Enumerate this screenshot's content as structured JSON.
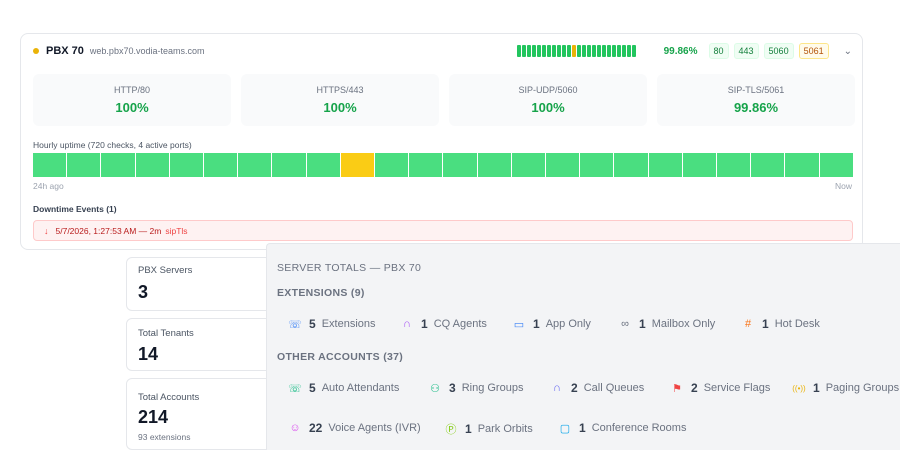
{
  "monitor": {
    "name": "PBX 70",
    "url": "web.pbx70.vodia-teams.com",
    "status_color": "#eab308",
    "overall_uptime": "99.86%",
    "mini_timeline": [
      "up",
      "up",
      "up",
      "up",
      "up",
      "up",
      "up",
      "up",
      "up",
      "up",
      "up",
      "warn",
      "up",
      "up",
      "up",
      "up",
      "up",
      "up",
      "up",
      "up",
      "up",
      "up",
      "up",
      "up"
    ],
    "port_chips": [
      {
        "label": "80",
        "status": "up"
      },
      {
        "label": "443",
        "status": "up"
      },
      {
        "label": "5060",
        "status": "up"
      },
      {
        "label": "5061",
        "status": "warn"
      }
    ],
    "ports": [
      {
        "label": "HTTP/80",
        "uptime": "100%"
      },
      {
        "label": "HTTPS/443",
        "uptime": "100%"
      },
      {
        "label": "SIP-UDP/5060",
        "uptime": "100%"
      },
      {
        "label": "SIP-TLS/5061",
        "uptime": "99.86%"
      }
    ],
    "hourly_title": "Hourly uptime (720 checks, 4 active ports)",
    "hourly": [
      "up",
      "up",
      "up",
      "up",
      "up",
      "up",
      "up",
      "up",
      "up",
      "warn",
      "up",
      "up",
      "up",
      "up",
      "up",
      "up",
      "up",
      "up",
      "up",
      "up",
      "up",
      "up",
      "up",
      "up"
    ],
    "axis_start": "24h ago",
    "axis_end": "Now",
    "downtime_title": "Downtime Events (1)",
    "events": [
      {
        "time": "5/7/2026, 1:27:53 AM — 2m",
        "port": "sipTls"
      }
    ]
  },
  "stats": [
    {
      "label": "PBX Servers",
      "value": "3",
      "sub": ""
    },
    {
      "label": "Total Tenants",
      "value": "14",
      "sub": ""
    },
    {
      "label": "Total Accounts",
      "value": "214",
      "sub": "93 extensions"
    }
  ],
  "server_totals": {
    "title": "SERVER TOTALS — PBX 70",
    "extensions_title": "EXTENSIONS (9)",
    "extensions": [
      {
        "icon": "phone-icon",
        "glyph": "☏",
        "color": "#3b82f6",
        "count": "5",
        "label": "Extensions"
      },
      {
        "icon": "headset-icon",
        "glyph": "∩",
        "color": "#a855f7",
        "count": "1",
        "label": "CQ Agents"
      },
      {
        "icon": "monitor-icon",
        "glyph": "▭",
        "color": "#3b82f6",
        "count": "1",
        "label": "App Only"
      },
      {
        "icon": "voicemail-icon",
        "glyph": "∞",
        "color": "#6b7280",
        "count": "1",
        "label": "Mailbox Only"
      },
      {
        "icon": "hash-icon",
        "glyph": "#",
        "color": "#f97316",
        "count": "1",
        "label": "Hot Desk"
      }
    ],
    "other_title": "OTHER ACCOUNTS (37)",
    "other": [
      {
        "icon": "phone-forward-icon",
        "glyph": "☏",
        "color": "#10b981",
        "count": "5",
        "label": "Auto Attendants"
      },
      {
        "icon": "users-icon",
        "glyph": "⚇",
        "color": "#10b981",
        "count": "3",
        "label": "Ring Groups"
      },
      {
        "icon": "headset-icon",
        "glyph": "∩",
        "color": "#6366f1",
        "count": "2",
        "label": "Call Queues"
      },
      {
        "icon": "flag-icon",
        "glyph": "⚑",
        "color": "#ef4444",
        "count": "2",
        "label": "Service Flags"
      },
      {
        "icon": "radio-icon",
        "glyph": "((•))",
        "color": "#eab308",
        "count": "1",
        "label": "Paging Groups"
      },
      {
        "icon": "bot-icon",
        "glyph": "☺",
        "color": "#d946ef",
        "count": "22",
        "label": "Voice Agents (IVR)"
      },
      {
        "icon": "parking-icon",
        "glyph": "Ⓟ",
        "color": "#84cc16",
        "count": "1",
        "label": "Park Orbits"
      },
      {
        "icon": "chat-icon",
        "glyph": "▢",
        "color": "#0ea5e9",
        "count": "1",
        "label": "Conference Rooms"
      }
    ]
  }
}
